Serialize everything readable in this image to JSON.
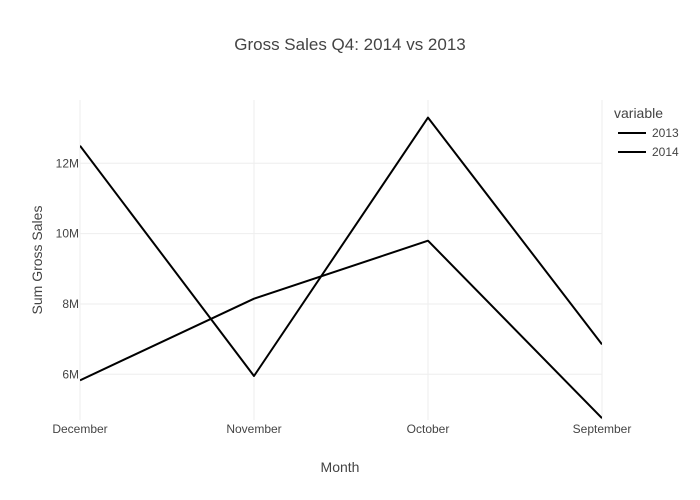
{
  "chart_data": {
    "type": "line",
    "title": "Gross Sales Q4: 2014 vs 2013",
    "xlabel": "Month",
    "ylabel": "Sum Gross Sales",
    "categories": [
      "December",
      "November",
      "October",
      "September"
    ],
    "ylim": [
      4700000,
      13800000
    ],
    "y_ticks": [
      6000000,
      8000000,
      10000000,
      12000000
    ],
    "y_tick_labels": [
      "6M",
      "8M",
      "10M",
      "12M"
    ],
    "grid": true,
    "legend": {
      "title": "variable",
      "position": "top-right"
    },
    "series": [
      {
        "name": "2013",
        "color": "#000000",
        "values": [
          12500000,
          5950000,
          13300000,
          6850000
        ]
      },
      {
        "name": "2014",
        "color": "#000000",
        "values": [
          5830000,
          8150000,
          9800000,
          4750000
        ]
      }
    ]
  }
}
